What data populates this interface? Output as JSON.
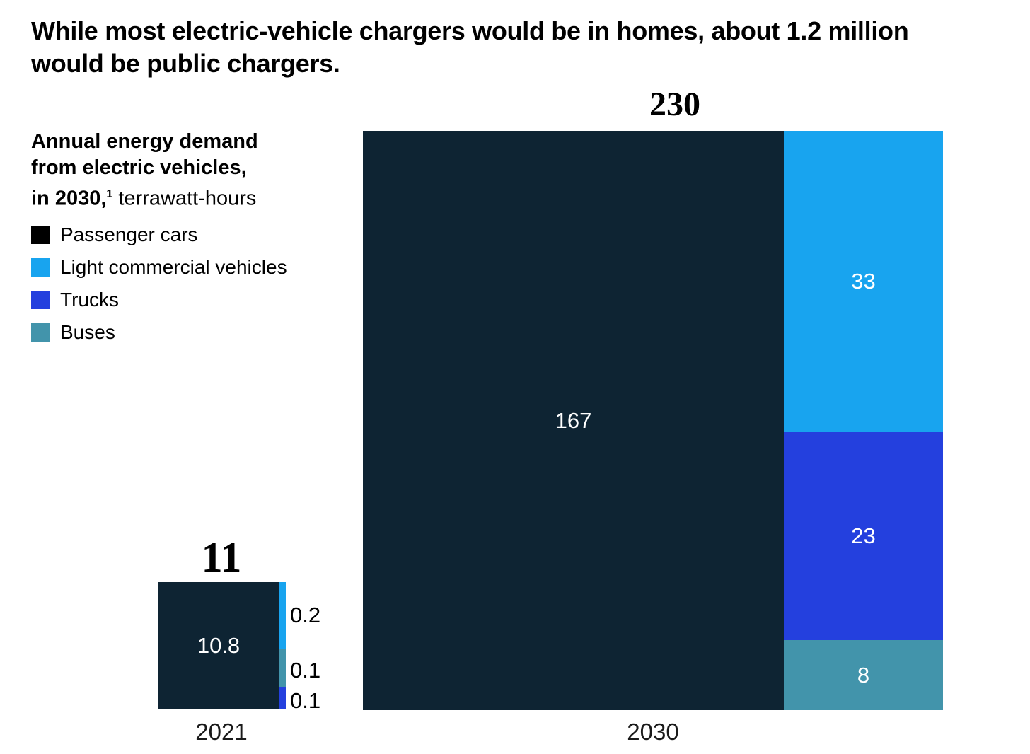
{
  "header": {
    "title_line1": "While most electric-vehicle chargers would be in homes, about 1.2 million",
    "title_line2": "would be public chargers."
  },
  "legend": {
    "heading_line1": "Annual energy demand",
    "heading_line2": "from electric vehicles,",
    "heading_line3_bold": "in 2030,",
    "heading_footnote_marker": "1",
    "heading_line3_regular": " terrawatt-hours",
    "items": [
      {
        "label": "Passenger cars",
        "color": "#000000"
      },
      {
        "label": "Light commercial vehicles",
        "color": "#18A4EF"
      },
      {
        "label": "Trucks",
        "color": "#2440DE"
      },
      {
        "label": "Buses",
        "color": "#4294AB"
      }
    ]
  },
  "bars": {
    "b2021": {
      "total": "11",
      "year": "2021",
      "passenger_value": "10.8",
      "outside_labels": [
        "0.2",
        "0.1",
        "0.1"
      ]
    },
    "b2030": {
      "total": "230",
      "year": "2030",
      "passenger_value": "167",
      "lcv_value": "33",
      "trucks_value": "23",
      "buses_value": "8"
    }
  },
  "colors": {
    "passenger_bar": "#0E2433",
    "passenger_legend_swatch": "#000000",
    "light_commercial": "#18A4EF",
    "trucks": "#2440DE",
    "buses": "#4294AB",
    "background": "#FFFFFF",
    "value_text_inside": "#FFFFFF",
    "value_text_outside": "#000000"
  },
  "chart_data": {
    "type": "bar",
    "variant": "marimekko-style stacked area blocks; each year's block area is proportional to its total; Passenger cars fills full block height with width share, remaining series stack vertically in a right-hand column",
    "title": "While most electric-vehicle chargers would be in homes, about 1.2 million would be public chargers.",
    "subtitle": "Annual energy demand from electric vehicles, in 2030,(1) terrawatt-hours",
    "unit": "terrawatt-hours",
    "categories": [
      "2021",
      "2030"
    ],
    "totals": [
      11,
      230
    ],
    "series": [
      {
        "name": "Passenger cars",
        "values": [
          10.8,
          167
        ],
        "color": "#0E2433"
      },
      {
        "name": "Light commercial vehicles",
        "values": [
          0.2,
          33
        ],
        "color": "#18A4EF"
      },
      {
        "name": "Trucks",
        "values": [
          0.1,
          23
        ],
        "color": "#2440DE"
      },
      {
        "name": "Buses",
        "values": [
          0.1,
          8
        ],
        "color": "#4294AB"
      }
    ],
    "stack_order_top_to_bottom": {
      "2021": [
        "Light commercial vehicles",
        "Buses",
        "Trucks"
      ],
      "2030": [
        "Light commercial vehicles",
        "Trucks",
        "Buses"
      ]
    },
    "legend_position": "upper-left",
    "grid": false,
    "total_labels_font": "serif",
    "annotations": "totals 11 and 230 shown above each block in bold serif; segment values labeled inside blocks in white, tiny 2021 segments labeled outside in black"
  }
}
